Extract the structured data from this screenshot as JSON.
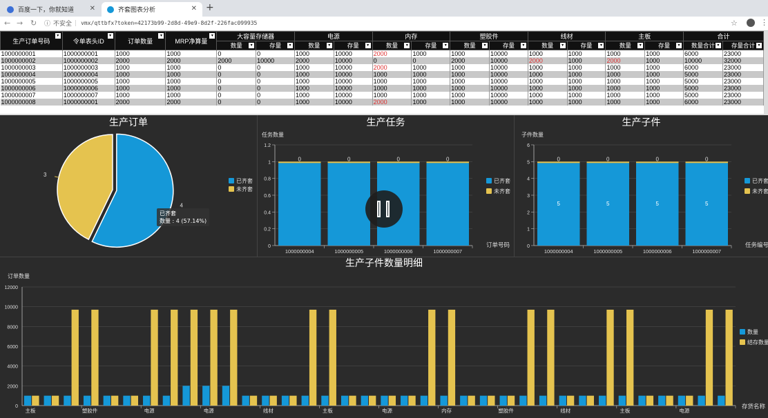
{
  "browser": {
    "tabs": [
      {
        "label": "百度一下，你就知道"
      },
      {
        "label": "齐套图表分析"
      }
    ],
    "address_warning": "不安全",
    "address_url": "vmx/qttbfx?token=42173b99-2d8d-49e9-8d2f-226fac099935"
  },
  "table": {
    "left_headers": [
      "生产订单号码",
      "令单表头ID",
      "订单数量",
      "MRP净算量"
    ],
    "groups": [
      "大容量存储器",
      "电源",
      "内存",
      "塑胶件",
      "线材",
      "主板",
      "合计"
    ],
    "sub_headers": [
      "数量",
      "存量",
      "数量",
      "存量",
      "数量",
      "存量",
      "数量",
      "存量",
      "数量",
      "存量",
      "数量",
      "存量",
      "数量合计",
      "存量合计"
    ],
    "rows": [
      [
        "1000000001",
        "1000000001",
        "1000",
        "1000",
        "0",
        "0",
        "1000",
        "10000",
        "2000",
        "1000",
        "1000",
        "10000",
        "1000",
        "1000",
        "1000",
        "1000",
        "6000",
        "23000"
      ],
      [
        "1000000002",
        "1000000002",
        "2000",
        "2000",
        "2000",
        "10000",
        "2000",
        "10000",
        "0",
        "0",
        "2000",
        "10000",
        "2000",
        "1000",
        "2000",
        "1000",
        "10000",
        "32000"
      ],
      [
        "1000000003",
        "1000000003",
        "1000",
        "1000",
        "0",
        "0",
        "1000",
        "10000",
        "2000",
        "1000",
        "1000",
        "10000",
        "1000",
        "1000",
        "1000",
        "1000",
        "6000",
        "23000"
      ],
      [
        "1000000004",
        "1000000004",
        "1000",
        "1000",
        "0",
        "0",
        "1000",
        "10000",
        "1000",
        "1000",
        "1000",
        "10000",
        "1000",
        "1000",
        "1000",
        "1000",
        "5000",
        "23000"
      ],
      [
        "1000000005",
        "1000000005",
        "1000",
        "1000",
        "0",
        "0",
        "1000",
        "10000",
        "1000",
        "1000",
        "1000",
        "10000",
        "1000",
        "1000",
        "1000",
        "1000",
        "5000",
        "23000"
      ],
      [
        "1000000006",
        "1000000006",
        "1000",
        "1000",
        "0",
        "0",
        "1000",
        "10000",
        "1000",
        "1000",
        "1000",
        "10000",
        "1000",
        "1000",
        "1000",
        "1000",
        "5000",
        "23000"
      ],
      [
        "1000000007",
        "1000000007",
        "1000",
        "1000",
        "0",
        "0",
        "1000",
        "10000",
        "1000",
        "1000",
        "1000",
        "10000",
        "1000",
        "1000",
        "1000",
        "1000",
        "5000",
        "23000"
      ],
      [
        "1000000008",
        "1000000001",
        "2000",
        "2000",
        "0",
        "0",
        "1000",
        "10000",
        "2000",
        "1000",
        "1000",
        "10000",
        "1000",
        "1000",
        "1000",
        "1000",
        "6000",
        "23000"
      ]
    ],
    "red_cells": [
      [
        0,
        8
      ],
      [
        1,
        12
      ],
      [
        1,
        14
      ],
      [
        2,
        8
      ],
      [
        7,
        8
      ]
    ]
  },
  "colors": {
    "blue": "#1598d8",
    "yellow": "#e5c34f",
    "red": "#d33333"
  },
  "chart_data": [
    {
      "type": "pie",
      "title": "生产订单",
      "legend": [
        "已齐套",
        "未齐套"
      ],
      "slices": [
        {
          "name": "已齐套",
          "value": 4
        },
        {
          "name": "未齐套",
          "value": 3
        }
      ],
      "slice_labels": [
        "4",
        "3"
      ],
      "tooltip": {
        "line1": "已齐套",
        "line2": "数量 : 4 (57.14%)"
      },
      "legend_placement": "right"
    },
    {
      "type": "bar",
      "title": "生产任务",
      "ylabel": "任务数量",
      "xlabel": "订单号码",
      "categories": [
        "1000000004",
        "1000000005",
        "1000000006",
        "1000000007"
      ],
      "series": [
        {
          "name": "已齐套",
          "values": [
            1,
            1,
            1,
            1
          ]
        },
        {
          "name": "未齐套",
          "values": [
            0,
            0,
            0,
            0
          ]
        }
      ],
      "bar_labels": [
        "",
        "",
        "",
        ""
      ],
      "top_labels": [
        "0",
        "0",
        "0",
        "0"
      ],
      "ylim": [
        0,
        1.2
      ],
      "yticks": [
        "0",
        "0.2",
        "0.4",
        "0.6",
        "0.8",
        "1",
        "1.2"
      ],
      "legend_placement": "right"
    },
    {
      "type": "bar",
      "title": "生产子件",
      "ylabel": "子件数量",
      "xlabel": "任务编号",
      "categories": [
        "1000000004",
        "1000000005",
        "1000000006",
        "1000000007"
      ],
      "series": [
        {
          "name": "已齐套",
          "values": [
            5,
            5,
            5,
            5
          ]
        },
        {
          "name": "未齐套",
          "values": [
            0,
            0,
            0,
            0
          ]
        }
      ],
      "bar_labels": [
        "5",
        "5",
        "5",
        "5"
      ],
      "top_labels": [
        "0",
        "0",
        "0",
        "0"
      ],
      "ylim": [
        0,
        6
      ],
      "yticks": [
        "0",
        "1",
        "2",
        "3",
        "4",
        "5",
        "6"
      ],
      "legend_placement": "right"
    },
    {
      "type": "bar",
      "title": "生产子件数量明细",
      "ylabel": "订单数量",
      "xlabel": "存货名称",
      "ylim": [
        0,
        12000
      ],
      "yticks": [
        "0",
        "2000",
        "4000",
        "6000",
        "8000",
        "10000",
        "12000"
      ],
      "x_tick_labels": [
        "主板",
        "塑胶件",
        "电源",
        "电源",
        "线材",
        "主板",
        "电源",
        "内存",
        "塑胶件",
        "线材",
        "主板",
        "电源"
      ],
      "series": [
        {
          "name": "数量",
          "values": [
            1000,
            1000,
            1000,
            1000,
            1000,
            1000,
            1000,
            1000,
            2000,
            2000,
            2000,
            1000,
            1000,
            1000,
            1000,
            1000,
            1000,
            1000,
            1000,
            1000,
            1000,
            1000,
            1000,
            1000,
            1000,
            1000,
            1000,
            1000,
            1000,
            1000,
            1000,
            1000,
            1000,
            1000,
            1000,
            1000
          ]
        },
        {
          "name": "结存数量",
          "values": [
            1000,
            1000,
            9700,
            9700,
            1000,
            1000,
            9700,
            9700,
            9700,
            9700,
            9700,
            1000,
            1000,
            1000,
            9700,
            9700,
            1000,
            1000,
            1000,
            1000,
            9700,
            9700,
            1000,
            1000,
            1000,
            9700,
            9700,
            1000,
            1000,
            9700,
            9700,
            1000,
            1000,
            1000,
            9700,
            9700
          ]
        }
      ],
      "legend_placement": "right"
    }
  ]
}
